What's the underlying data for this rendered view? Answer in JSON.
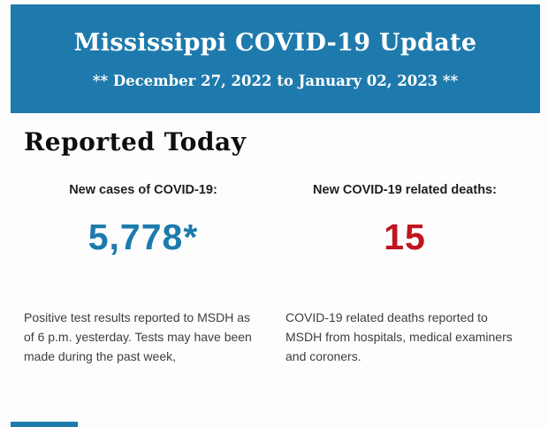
{
  "banner": {
    "title": "Mississippi COVID-19 Update",
    "subtitle": "** December 27, 2022 to January 02, 2023 **",
    "background_color": "#1e7aad",
    "text_color": "#ffffff"
  },
  "report": {
    "heading": "Reported Today",
    "stats": [
      {
        "label": "New cases of COVID-19:",
        "value": "5,778*",
        "value_color": "#1c7aad",
        "description": "Positive test results reported to MSDH as of 6 p.m. yesterday. Tests may have been made during the past week,"
      },
      {
        "label": "New COVID-19 related deaths:",
        "value": "15",
        "value_color": "#c11420",
        "description": "COVID-19 related deaths reported to MSDH from hospitals, medical examiners and coroners."
      }
    ]
  },
  "footer": {
    "partial_banner_color": "#1e7aad"
  }
}
